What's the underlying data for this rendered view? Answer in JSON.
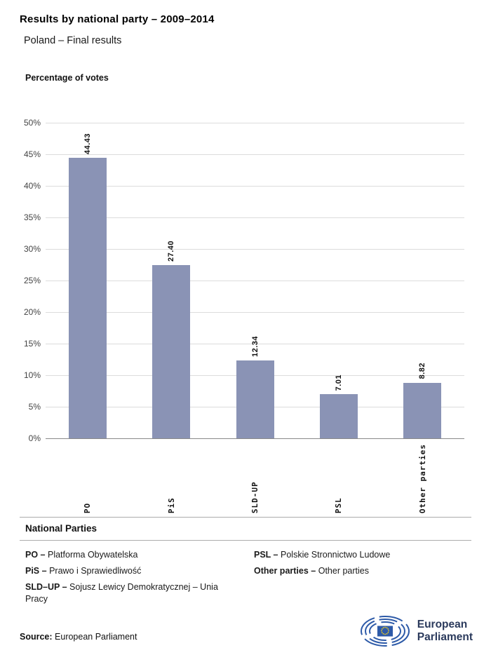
{
  "header": {
    "title": "Results by national party – 2009–2014",
    "subtitle": "Poland – Final results"
  },
  "chart": {
    "heading": "Percentage of votes"
  },
  "chart_data": {
    "type": "bar",
    "title": "Percentage of votes",
    "categories": [
      "PO",
      "PiS",
      "SLD-UP",
      "PSL",
      "Other parties"
    ],
    "values": [
      44.43,
      27.4,
      12.34,
      7.01,
      8.82
    ],
    "value_labels": [
      "44.43",
      "27.40",
      "12.34",
      "7.01",
      "8.82"
    ],
    "ylim": [
      0,
      50
    ],
    "y_ticks": [
      "0%",
      "5%",
      "10%",
      "15%",
      "20%",
      "25%",
      "30%",
      "35%",
      "40%",
      "45%",
      "50%"
    ],
    "grid": true,
    "legend_position": "none",
    "bar_color": "#8a93b5",
    "xlabel": "",
    "ylabel": ""
  },
  "legend": {
    "heading": "National Parties",
    "items": [
      {
        "abbr": "PO –",
        "name": "Platforma Obywatelska"
      },
      {
        "abbr": "PiS –",
        "name": "Prawo i Sprawiedliwość"
      },
      {
        "abbr": "SLD–UP –",
        "name": "Sojusz Lewicy Demokratycznej – Unia Pracy"
      },
      {
        "abbr": "PSL –",
        "name": "Polskie Stronnictwo Ludowe"
      },
      {
        "abbr": "Other parties –",
        "name": "Other parties"
      }
    ]
  },
  "footer": {
    "source_label": "Source:",
    "source_value": "European Parliament",
    "logo": {
      "line1": "European",
      "line2": "Parliament"
    }
  }
}
